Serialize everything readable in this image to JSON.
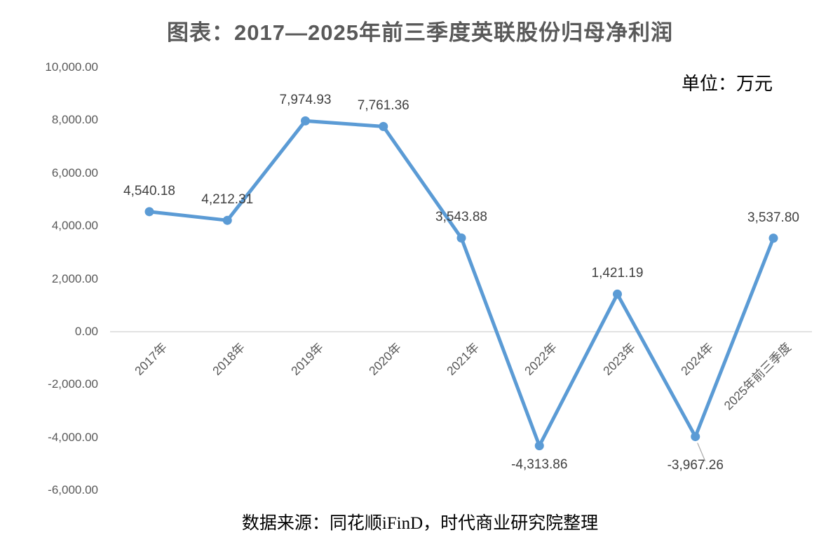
{
  "header": {
    "title": "图表：2017—2025年前三季度英联股份归母净利润",
    "unit_label": "单位：万元"
  },
  "footer": {
    "source_note": "数据来源：同花顺iFinD，时代商业研究院整理"
  },
  "chart_data": {
    "type": "line",
    "title": "图表：2017—2025年前三季度英联股份归母净利润",
    "unit": "万元",
    "categories": [
      "2017年",
      "2018年",
      "2019年",
      "2020年",
      "2021年",
      "2022年",
      "2023年",
      "2024年",
      "2025年前三季度"
    ],
    "values": [
      4540.18,
      4212.31,
      7974.93,
      7761.36,
      3543.88,
      -4313.86,
      1421.19,
      -3967.26,
      3537.8
    ],
    "value_labels": [
      "4,540.18",
      "4,212.31",
      "7,974.93",
      "7,761.36",
      "3,543.88",
      "-4,313.86",
      "1,421.19",
      "-3,967.26",
      "3,537.80"
    ],
    "label_positions": [
      "above",
      "above",
      "above",
      "above",
      "above",
      "below",
      "above",
      "below",
      "above"
    ],
    "label_extra_dy": [
      0,
      0,
      0,
      0,
      0,
      0,
      0,
      14,
      0
    ],
    "leader_line_index": 7,
    "y_axis": {
      "min": -6000,
      "max": 10000,
      "step": 2000,
      "tick_labels": [
        "10,000.00",
        "8,000.00",
        "6,000.00",
        "4,000.00",
        "2,000.00",
        "0.00",
        "-2,000.00",
        "-4,000.00",
        "-6,000.00"
      ]
    },
    "x_axis": {
      "label_rotation_deg": -45
    },
    "grid": "off",
    "legend": "none",
    "colors": {
      "line": "#5B9BD5",
      "marker": "#5B9BD5",
      "zero_axis_line": "#D9D9D9",
      "axis_text": "#595959",
      "data_label_text": "#404040",
      "title_text": "#595959",
      "annotation_text": "#000000",
      "leader_line": "#A6A6A6",
      "background": "#FFFFFF"
    }
  }
}
